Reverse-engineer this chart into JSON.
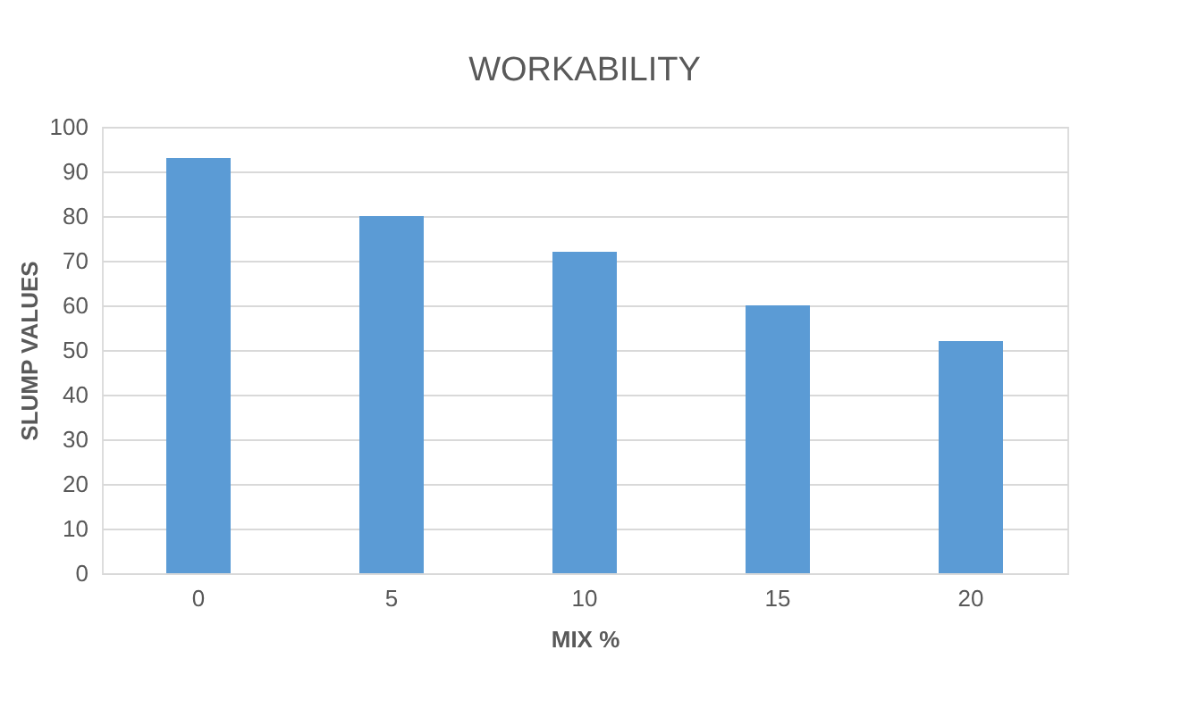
{
  "chart_data": {
    "type": "bar",
    "title": "WORKABILITY",
    "xlabel": "MIX %",
    "ylabel": "SLUMP VALUES",
    "categories": [
      "0",
      "5",
      "10",
      "15",
      "20"
    ],
    "values": [
      93,
      80,
      72,
      60,
      52
    ],
    "color": "#5b9bd5",
    "ylim": [
      0,
      100
    ],
    "yticks": [
      0,
      10,
      20,
      30,
      40,
      50,
      60,
      70,
      80,
      90,
      100
    ],
    "grid": "y"
  }
}
